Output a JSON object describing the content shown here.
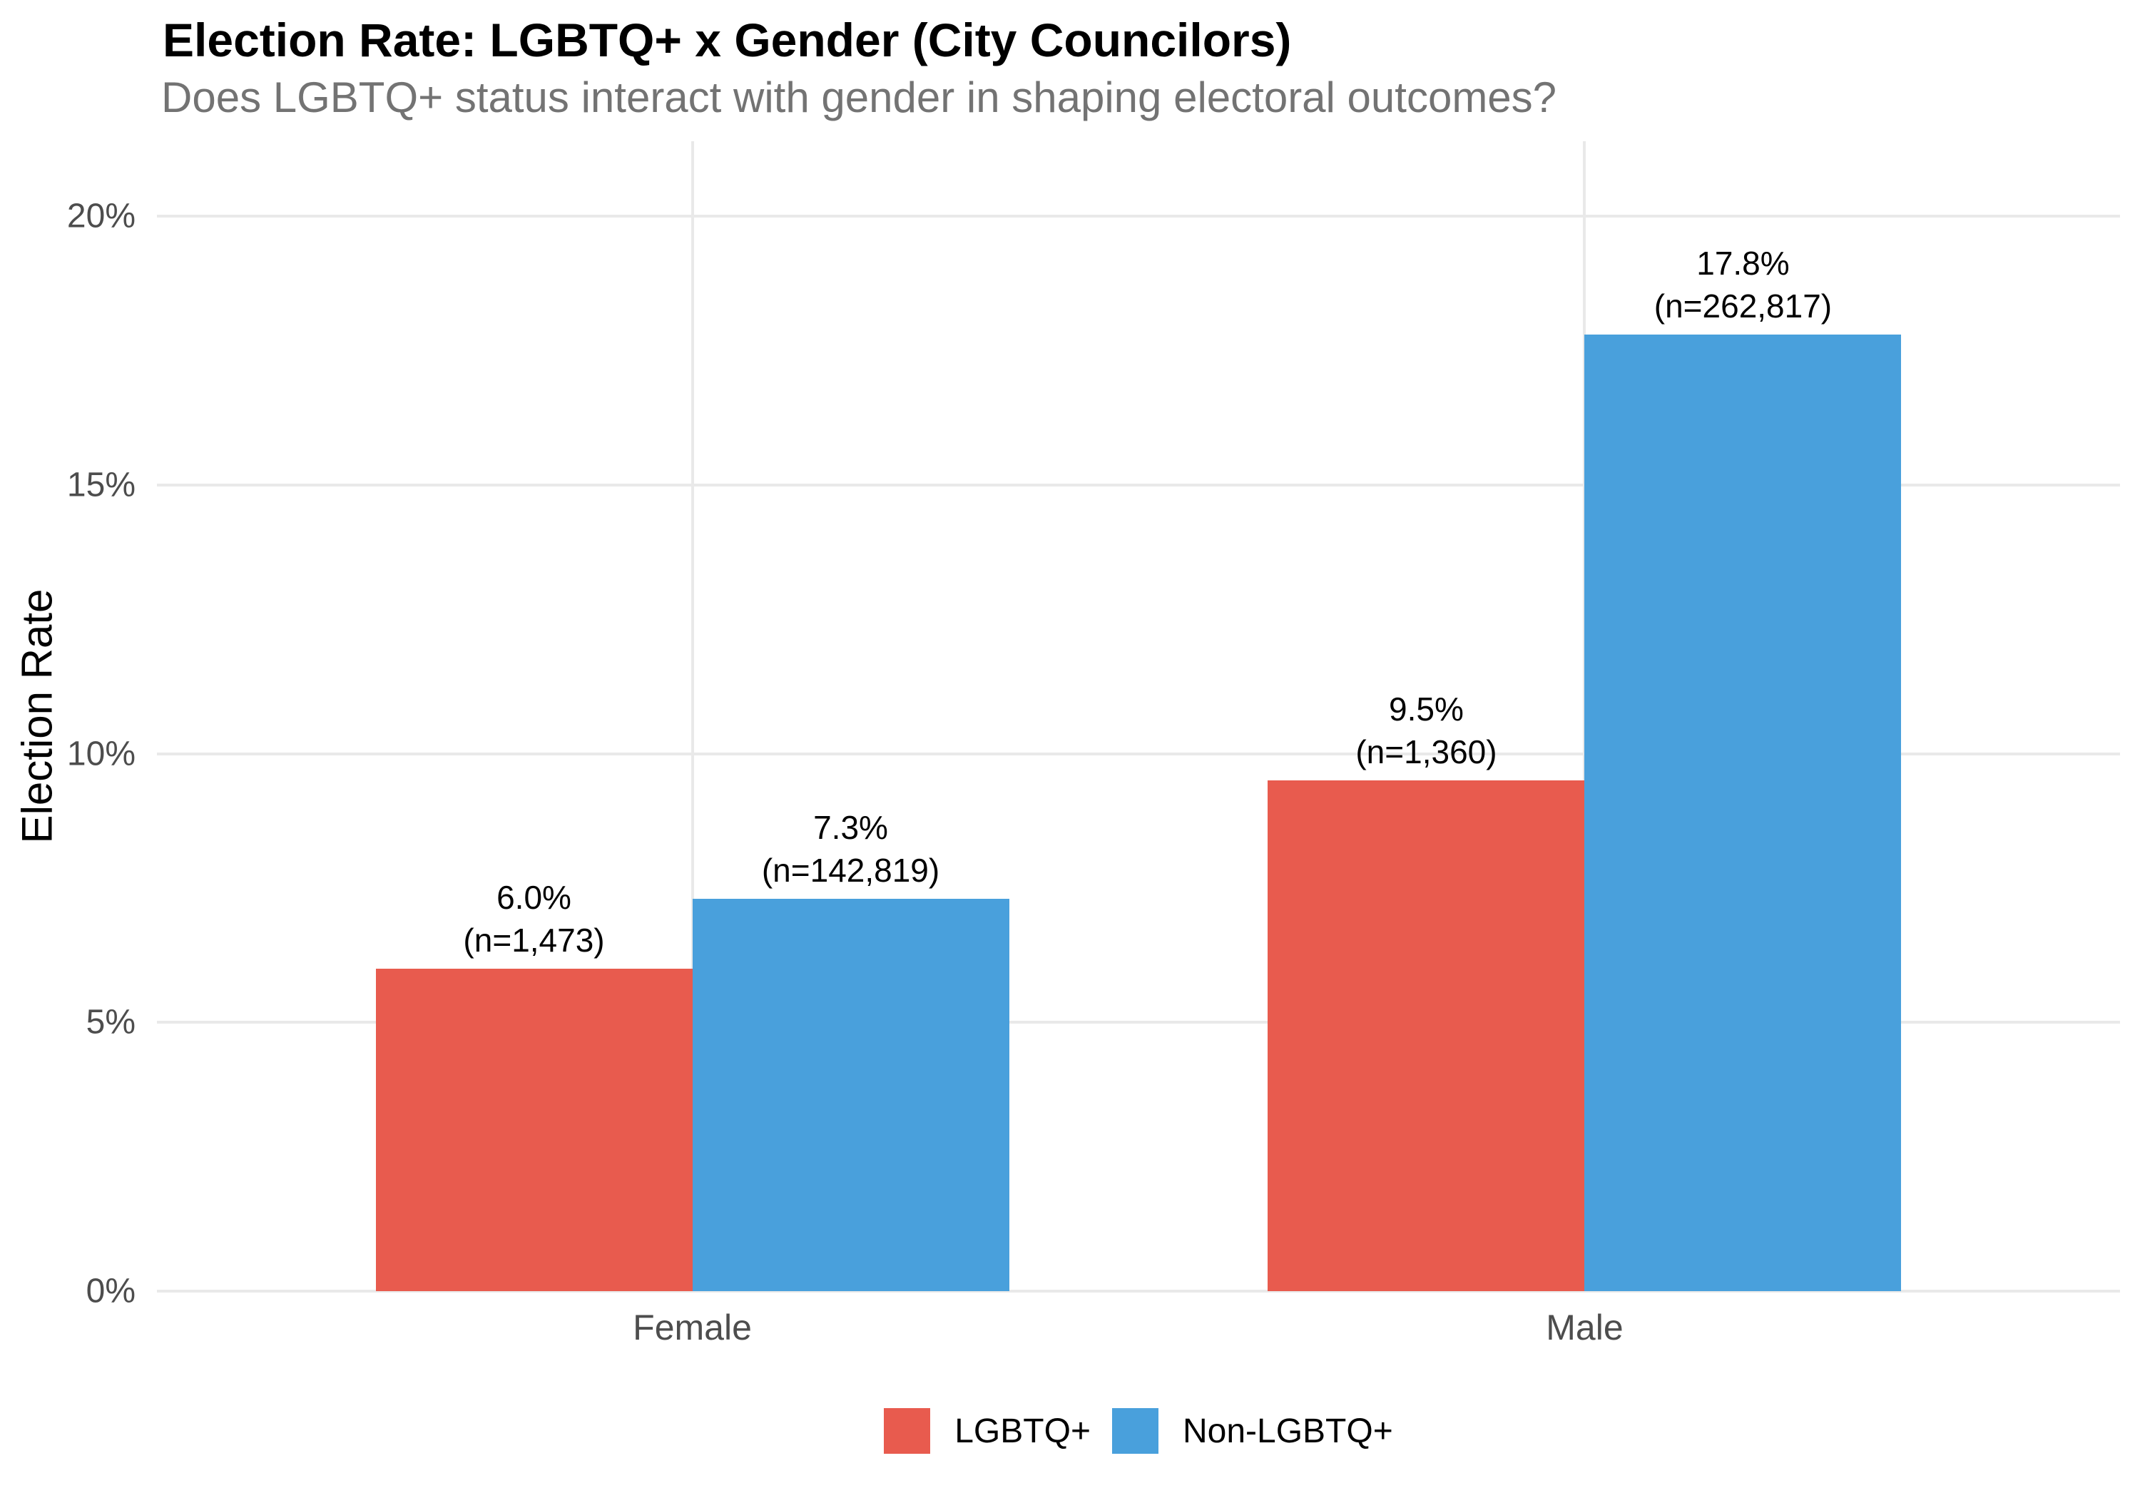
{
  "chart_data": {
    "type": "bar",
    "title": "Election Rate: LGBTQ+ x Gender (City Councilors)",
    "subtitle": "Does LGBTQ+ status interact with gender in shaping electoral outcomes?",
    "ylabel": "Election Rate",
    "xlabel": "",
    "categories": [
      "Female",
      "Male"
    ],
    "series": [
      {
        "name": "LGBTQ+",
        "color": "#E85B4E",
        "values": [
          6.0,
          9.5
        ],
        "bar_labels": [
          [
            "6.0%",
            "(n=1,473)"
          ],
          [
            "9.5%",
            "(n=1,360)"
          ]
        ]
      },
      {
        "name": "Non-LGBTQ+",
        "color": "#49A0DC",
        "values": [
          7.3,
          17.8
        ],
        "bar_labels": [
          [
            "7.3%",
            "(n=142,819)"
          ],
          [
            "17.8%",
            "(n=262,817)"
          ]
        ]
      }
    ],
    "y_ticks": [
      {
        "label": "0%",
        "value": 0
      },
      {
        "label": "5%",
        "value": 5
      },
      {
        "label": "10%",
        "value": 10
      },
      {
        "label": "15%",
        "value": 15
      },
      {
        "label": "20%",
        "value": 20
      }
    ],
    "ylim": [
      0,
      21.4
    ],
    "grid": true,
    "legend_position": "bottom",
    "colors": {
      "grid": "#E9E9E9",
      "axis_text": "#4D4D4D",
      "subtitle_text": "#737373",
      "label_text": "#000000"
    }
  }
}
